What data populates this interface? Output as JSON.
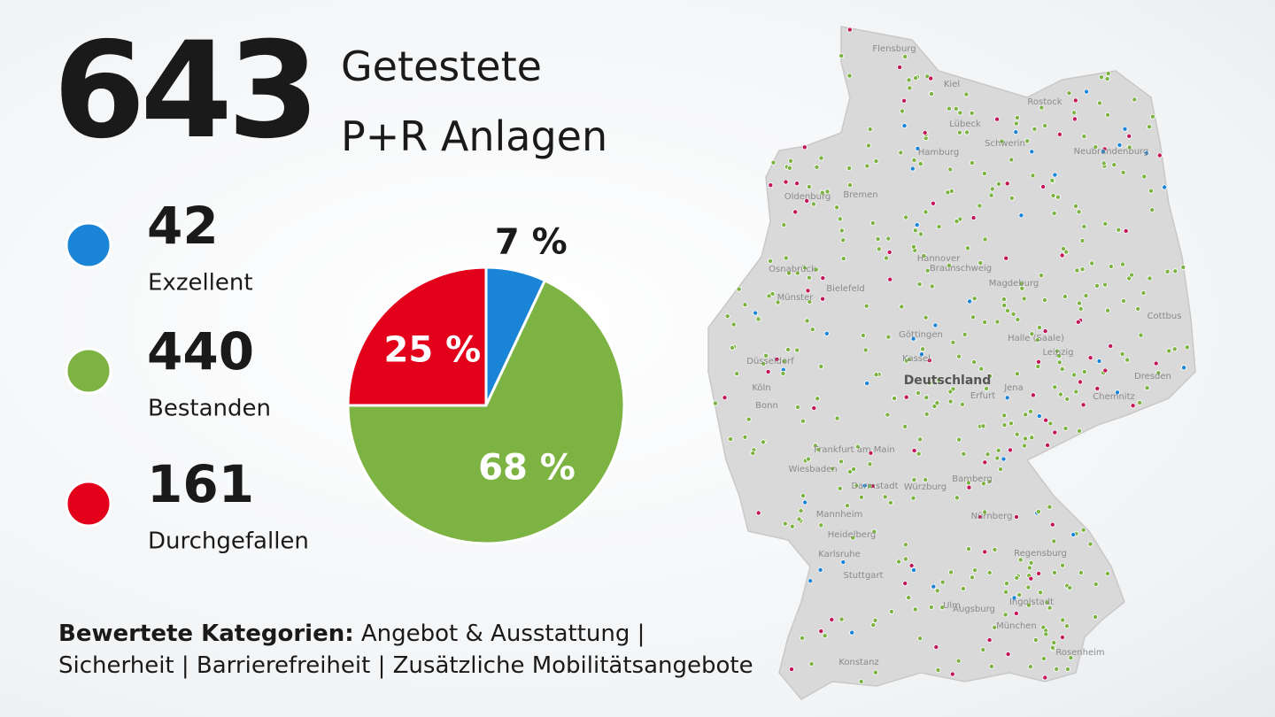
{
  "header": {
    "count": "643",
    "title_line1": "Getestete",
    "title_line2": "P+R Anlagen"
  },
  "chart_data": {
    "type": "pie",
    "categories": [
      "Exzellent",
      "Bestanden",
      "Durchgefallen"
    ],
    "counts": [
      42,
      440,
      161
    ],
    "values": [
      7,
      68,
      25
    ],
    "value_labels": [
      "7 %",
      "68 %",
      "25 %"
    ],
    "colors": [
      "#1a85d6",
      "#7cb342",
      "#e3001b"
    ]
  },
  "footer": {
    "bold": "Bewertete Kategorien:",
    "text": "Angebot & Ausstattung | Sicherheit | Barrierefreiheit | Zusätzliche Mobilitätsangebote"
  },
  "map": {
    "labels": [
      "Flensburg",
      "Kiel",
      "Rostock",
      "Lübeck",
      "Hamburg",
      "Schwerin",
      "Bremen",
      "Oldenburg",
      "Hannover",
      "Osnabrück",
      "Münster",
      "Bielefeld",
      "Braunschweig",
      "Magdeburg",
      "Düsseldorf",
      "Köln",
      "Bonn",
      "Kassel",
      "Göttingen",
      "Halle (Saale)",
      "Leipzig",
      "Dresden",
      "Chemnitz",
      "Erfurt",
      "Jena",
      "Deutschland",
      "Frankfurt am Main",
      "Wiesbaden",
      "Darmstadt",
      "Würzburg",
      "Bamberg",
      "Nürnberg",
      "Mannheim",
      "Heidelberg",
      "Karlsruhe",
      "Stuttgart",
      "Regensburg",
      "Ingolstadt",
      "Augsburg",
      "München",
      "Ulm",
      "Rosenheim",
      "Konstanz",
      "Cottbus",
      "Neubrandenburg"
    ]
  }
}
